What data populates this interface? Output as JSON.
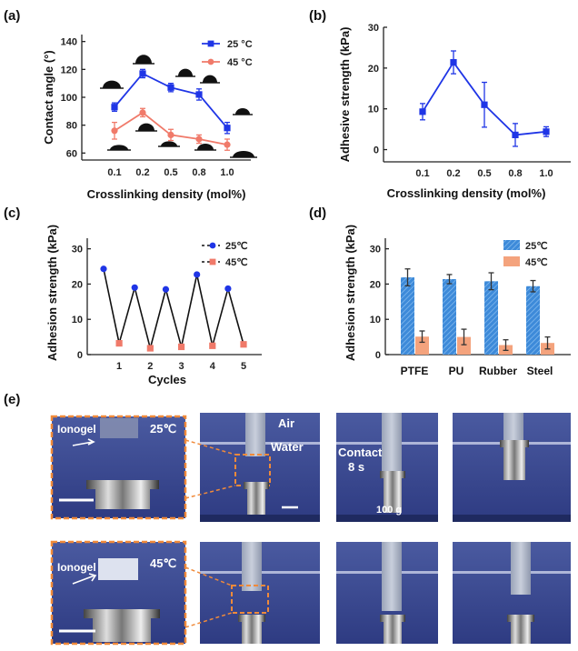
{
  "chart_data": [
    {
      "panel": "(a)",
      "type": "line",
      "ylabel": "Contact angle (°)",
      "xlabel": "Crosslinking density (mol%)",
      "categories": [
        "0.1",
        "0.2",
        "0.5",
        "0.8",
        "1.0"
      ],
      "ylim": [
        55,
        145
      ],
      "yticks": [
        60,
        80,
        100,
        120,
        140
      ],
      "legend": "top-right",
      "series": [
        {
          "name": "25 °C",
          "color": "#1f35e6",
          "marker": "square",
          "values": [
            93,
            117,
            107,
            102,
            78
          ],
          "errors": [
            3,
            3,
            3,
            4,
            4
          ]
        },
        {
          "name": "45 °C",
          "color": "#f07a6a",
          "marker": "circle",
          "values": [
            76,
            89,
            73,
            70,
            66
          ],
          "errors": [
            6,
            3,
            4,
            3,
            4
          ]
        }
      ]
    },
    {
      "panel": "(b)",
      "type": "line",
      "ylabel": "Adhesive strength (kPa)",
      "xlabel": "Crosslinking density (mol%)",
      "categories": [
        "0.1",
        "0.2",
        "0.5",
        "0.8",
        "1.0"
      ],
      "ylim": [
        -3,
        30
      ],
      "yticks": [
        0,
        10,
        20,
        30
      ],
      "series": [
        {
          "color": "#1f35e6",
          "marker": "square",
          "values": [
            9.3,
            21.4,
            11.0,
            3.6,
            4.4
          ],
          "errors": [
            2.0,
            2.8,
            5.5,
            2.8,
            1.2
          ]
        }
      ]
    },
    {
      "panel": "(c)",
      "type": "line",
      "ylabel": "Adhesion strength (kPa)",
      "xlabel": "Cycles",
      "xticks": [
        "1",
        "2",
        "3",
        "4",
        "5"
      ],
      "ylim": [
        0,
        33
      ],
      "yticks": [
        0,
        10,
        20,
        30
      ],
      "legend": "top-right",
      "x": [
        0.5,
        1,
        1.5,
        2,
        2.5,
        3,
        3.5,
        4,
        4.5,
        5
      ],
      "values": [
        24.3,
        3.2,
        19.0,
        1.8,
        18.5,
        2.2,
        22.7,
        2.5,
        18.7,
        2.9
      ],
      "series": [
        {
          "name": "25℃",
          "color": "#1f35e6",
          "marker": "circle"
        },
        {
          "name": "45℃",
          "color": "#f07a6a",
          "marker": "square"
        }
      ]
    },
    {
      "panel": "(d)",
      "type": "bar",
      "ylabel": "Adhesion strength (kPa)",
      "categories": [
        "PTFE",
        "PU",
        "Rubber",
        "Steel"
      ],
      "ylim": [
        0,
        33
      ],
      "yticks": [
        0,
        10,
        20,
        30
      ],
      "legend": "top-right",
      "series": [
        {
          "name": "25℃",
          "color": "#3d8ad9",
          "values": [
            21.9,
            21.4,
            20.8,
            19.4
          ],
          "errors": [
            2.4,
            1.3,
            2.4,
            1.6
          ]
        },
        {
          "name": "45℃",
          "color": "#f4a37d",
          "values": [
            5.1,
            5.0,
            2.7,
            3.3
          ],
          "errors": [
            1.6,
            2.2,
            1.5,
            1.7
          ]
        }
      ]
    }
  ],
  "panel_e": {
    "label": "(e)",
    "top_inset": {
      "material": "Ionogel",
      "temp": "25℃"
    },
    "bottom_inset": {
      "material": "Ionogel",
      "temp": "45℃"
    },
    "air": "Air",
    "water": "Water",
    "contact_1": "Contact",
    "contact_2": "8 s",
    "weight": "100 g"
  }
}
